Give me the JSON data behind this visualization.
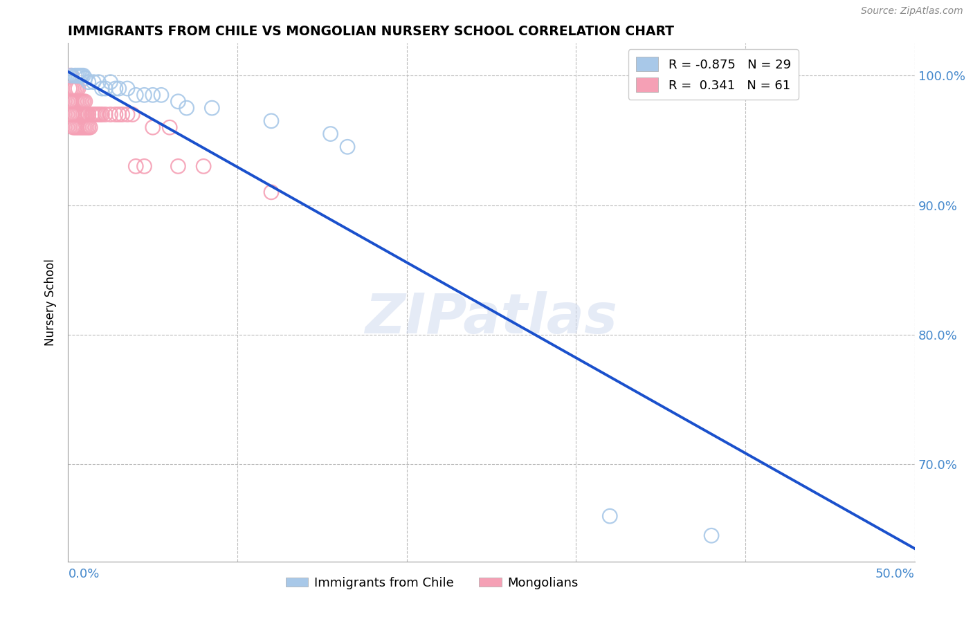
{
  "title": "IMMIGRANTS FROM CHILE VS MONGOLIAN NURSERY SCHOOL CORRELATION CHART",
  "source": "Source: ZipAtlas.com",
  "ylabel": "Nursery School",
  "blue_R": -0.875,
  "blue_N": 29,
  "pink_R": 0.341,
  "pink_N": 61,
  "blue_color": "#a8c8e8",
  "pink_color": "#f5a0b5",
  "blue_line_color": "#1a50cc",
  "watermark": "ZIPatlas",
  "grid_color": "#bbbbbb",
  "axis_label_color": "#4488cc",
  "title_color": "#000000",
  "xlim": [
    0.0,
    0.5
  ],
  "ylim": [
    0.625,
    1.025
  ],
  "yticks": [
    0.7,
    0.8,
    0.9,
    1.0
  ],
  "ytick_labels": [
    "70.0%",
    "80.0%",
    "90.0%",
    "100.0%"
  ],
  "blue_line_x0": 0.0,
  "blue_line_y0": 1.003,
  "blue_line_x1": 0.5,
  "blue_line_y1": 0.635,
  "blue_scatter_x": [
    0.002,
    0.004,
    0.005,
    0.006,
    0.007,
    0.008,
    0.009,
    0.01,
    0.012,
    0.015,
    0.018,
    0.02,
    0.022,
    0.025,
    0.028,
    0.03,
    0.035,
    0.04,
    0.045,
    0.05,
    0.055,
    0.065,
    0.07,
    0.085,
    0.12,
    0.155,
    0.165,
    0.32,
    0.38
  ],
  "blue_scatter_y": [
    1.0,
    1.0,
    1.0,
    1.0,
    1.0,
    1.0,
    1.0,
    0.998,
    0.995,
    0.995,
    0.995,
    0.99,
    0.99,
    0.995,
    0.99,
    0.99,
    0.99,
    0.985,
    0.985,
    0.985,
    0.985,
    0.98,
    0.975,
    0.975,
    0.965,
    0.955,
    0.945,
    0.66,
    0.645
  ],
  "pink_scatter_x": [
    0.001,
    0.001,
    0.001,
    0.002,
    0.002,
    0.002,
    0.002,
    0.003,
    0.003,
    0.003,
    0.003,
    0.004,
    0.004,
    0.004,
    0.004,
    0.005,
    0.005,
    0.005,
    0.005,
    0.006,
    0.006,
    0.006,
    0.006,
    0.007,
    0.007,
    0.007,
    0.008,
    0.008,
    0.008,
    0.009,
    0.009,
    0.009,
    0.01,
    0.01,
    0.01,
    0.011,
    0.011,
    0.012,
    0.012,
    0.013,
    0.014,
    0.015,
    0.016,
    0.017,
    0.018,
    0.019,
    0.02,
    0.022,
    0.025,
    0.028,
    0.03,
    0.032,
    0.035,
    0.038,
    0.04,
    0.045,
    0.05,
    0.06,
    0.065,
    0.08,
    0.12
  ],
  "pink_scatter_y": [
    1.0,
    0.99,
    0.98,
    1.0,
    0.99,
    0.98,
    0.97,
    0.99,
    0.98,
    0.97,
    0.96,
    0.99,
    0.98,
    0.97,
    0.96,
    0.99,
    0.98,
    0.97,
    0.96,
    0.99,
    0.98,
    0.97,
    0.96,
    0.98,
    0.97,
    0.96,
    0.98,
    0.97,
    0.96,
    0.98,
    0.97,
    0.96,
    0.98,
    0.97,
    0.96,
    0.97,
    0.96,
    0.97,
    0.96,
    0.96,
    0.97,
    0.97,
    0.97,
    0.97,
    0.97,
    0.97,
    0.97,
    0.97,
    0.97,
    0.97,
    0.97,
    0.97,
    0.97,
    0.97,
    0.93,
    0.93,
    0.96,
    0.96,
    0.93,
    0.93,
    0.91
  ],
  "legend_series": [
    "Immigrants from Chile",
    "Mongolians"
  ]
}
